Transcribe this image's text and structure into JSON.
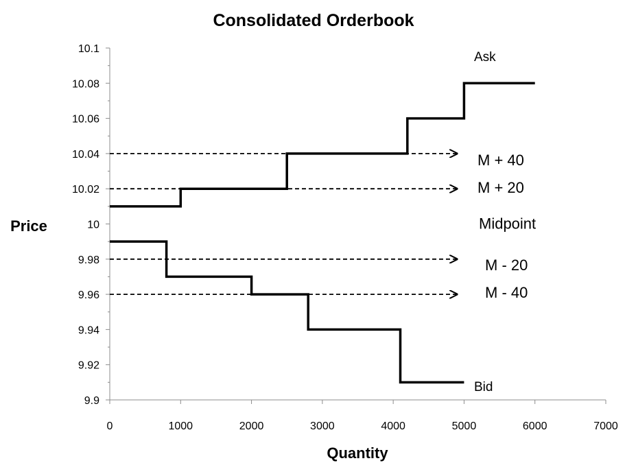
{
  "chart_data": {
    "type": "line",
    "title": "Consolidated Orderbook",
    "xlabel": "Quantity",
    "ylabel": "Price",
    "xlim": [
      0,
      7000
    ],
    "ylim": [
      9.9,
      10.1
    ],
    "x_ticks": [
      "0",
      "1000",
      "2000",
      "3000",
      "4000",
      "5000",
      "6000",
      "7000"
    ],
    "y_ticks": [
      "9.9",
      "9.92",
      "9.94",
      "9.96",
      "9.98",
      "10",
      "10.02",
      "10.04",
      "10.06",
      "10.08",
      "10.1"
    ],
    "grid": false,
    "series": [
      {
        "name": "Ask",
        "style": "step",
        "points": [
          [
            0,
            10.01
          ],
          [
            1000,
            10.01
          ],
          [
            1000,
            10.02
          ],
          [
            2500,
            10.02
          ],
          [
            2500,
            10.04
          ],
          [
            4200,
            10.04
          ],
          [
            4200,
            10.06
          ],
          [
            5000,
            10.06
          ],
          [
            5000,
            10.08
          ],
          [
            6000,
            10.08
          ]
        ]
      },
      {
        "name": "Bid",
        "style": "step",
        "points": [
          [
            0,
            9.99
          ],
          [
            800,
            9.99
          ],
          [
            800,
            9.97
          ],
          [
            2000,
            9.97
          ],
          [
            2000,
            9.96
          ],
          [
            2800,
            9.96
          ],
          [
            2800,
            9.94
          ],
          [
            4100,
            9.94
          ],
          [
            4100,
            9.91
          ],
          [
            5000,
            9.91
          ]
        ]
      }
    ],
    "reference_lines": [
      {
        "label": "M + 40",
        "y": 10.04,
        "x_end": 4900
      },
      {
        "label": "M + 20",
        "y": 10.02,
        "x_end": 4900
      },
      {
        "label": "M - 20",
        "y": 9.98,
        "x_end": 4900
      },
      {
        "label": "M - 40",
        "y": 9.96,
        "x_end": 4900
      }
    ],
    "annotations": {
      "ask": "Ask",
      "bid": "Bid",
      "midpoint": "Midpoint"
    }
  }
}
